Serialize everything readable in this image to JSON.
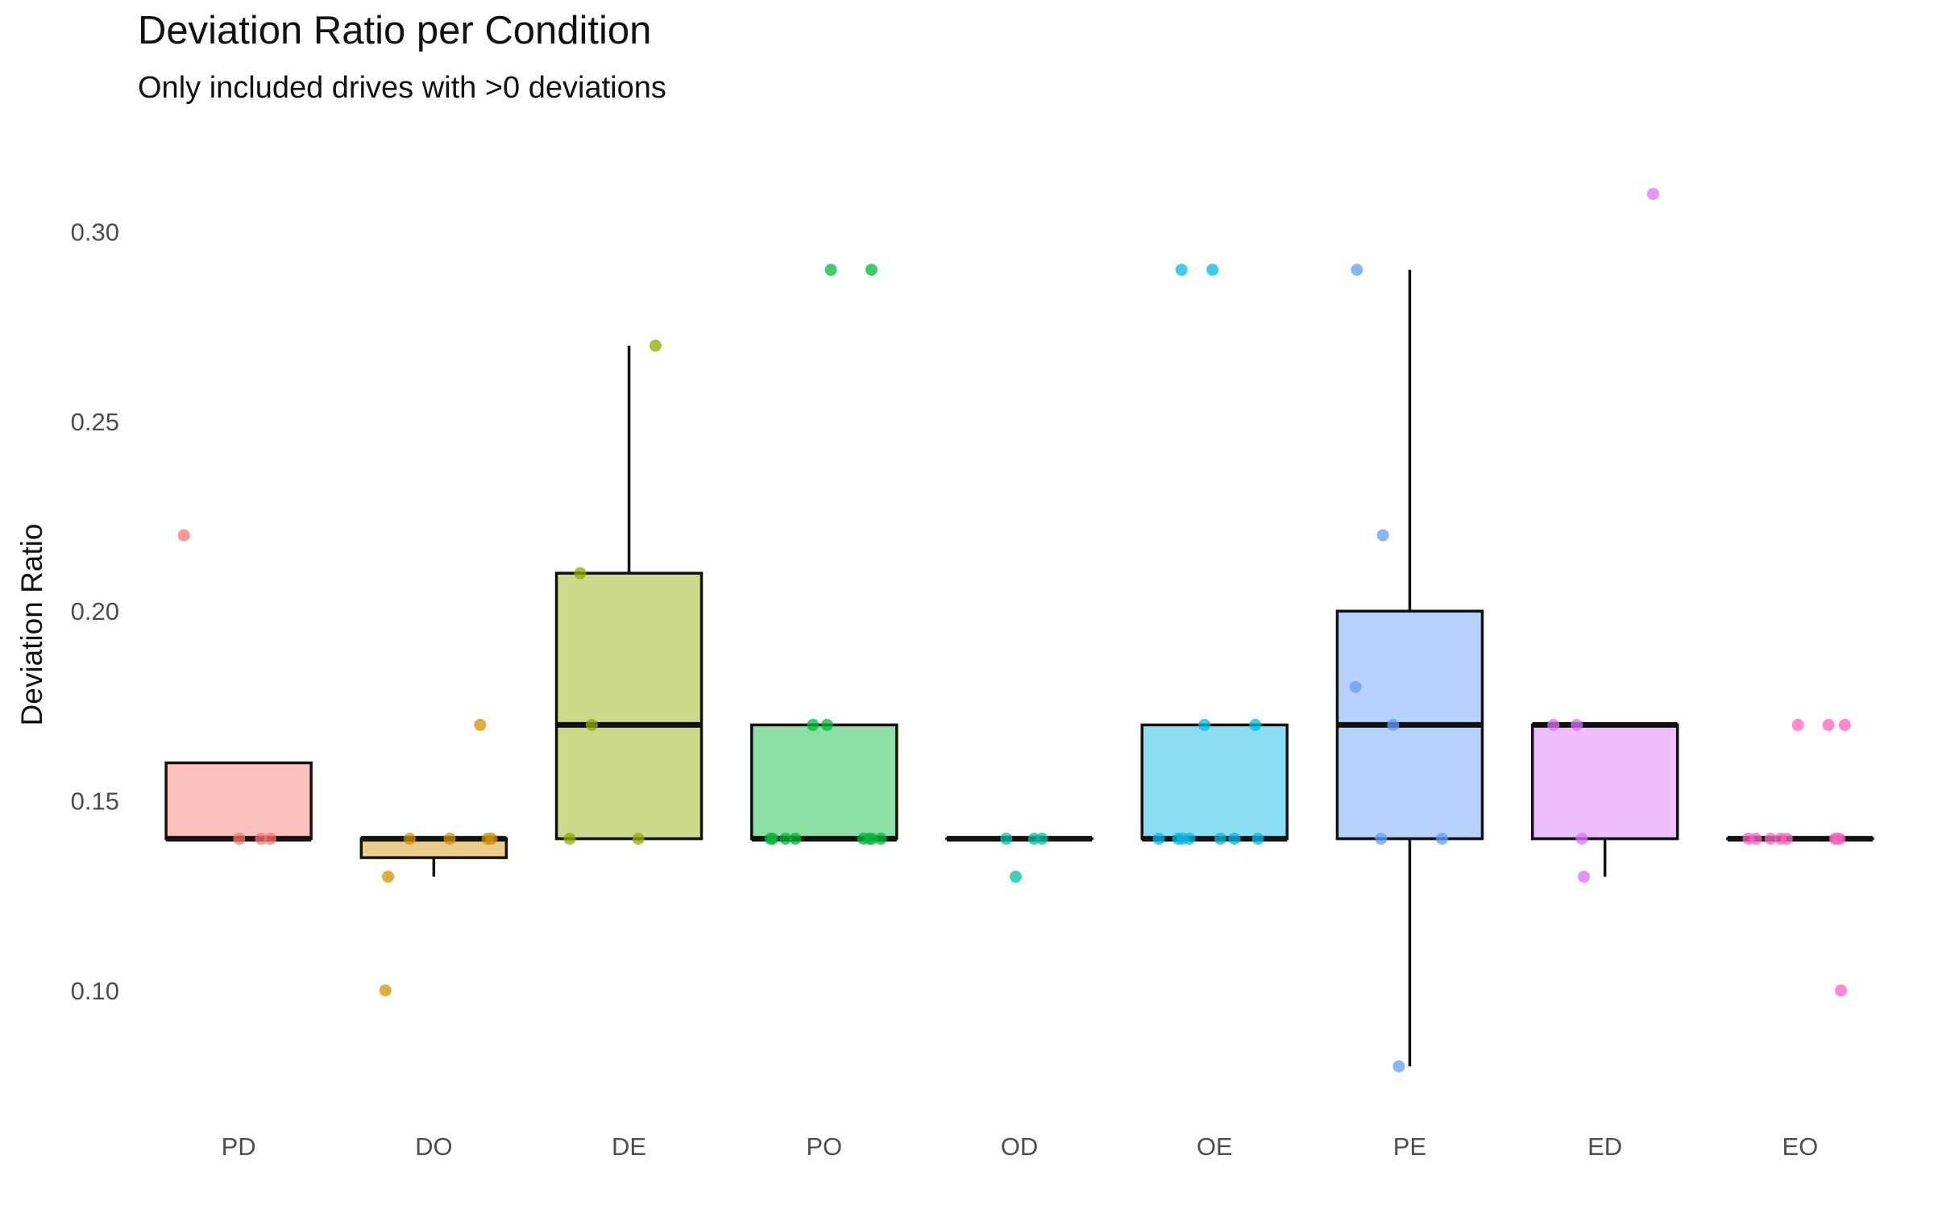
{
  "chart_data": {
    "type": "box",
    "title": "Deviation Ratio per Condition",
    "subtitle": "Only included drives with >0 deviations",
    "xlabel": "",
    "ylabel": "Deviation Ratio",
    "ylim": [
      0.07,
      0.325
    ],
    "yticks": [
      0.1,
      0.15,
      0.2,
      0.25,
      0.3
    ],
    "ytick_labels": [
      "0.10",
      "0.15",
      "0.20",
      "0.25",
      "0.30"
    ],
    "grid": false,
    "legend": "none",
    "categories": [
      "PD",
      "DO",
      "DE",
      "PO",
      "OD",
      "OE",
      "PE",
      "ED",
      "EO"
    ],
    "groups": [
      {
        "name": "PD",
        "color": "#F8766D",
        "q1": 0.14,
        "median": 0.14,
        "q3": 0.16,
        "whisker_low": 0.14,
        "whisker_high": 0.16,
        "points": [
          0.22,
          0.14,
          0.14,
          0.14
        ]
      },
      {
        "name": "DO",
        "color": "#D39200",
        "q1": 0.135,
        "median": 0.14,
        "q3": 0.14,
        "whisker_low": 0.13,
        "whisker_high": 0.14,
        "points": [
          0.17,
          0.14,
          0.14,
          0.14,
          0.14,
          0.13,
          0.1
        ]
      },
      {
        "name": "DE",
        "color": "#93AA00",
        "q1": 0.14,
        "median": 0.17,
        "q3": 0.21,
        "whisker_low": 0.14,
        "whisker_high": 0.27,
        "points": [
          0.27,
          0.21,
          0.17,
          0.14,
          0.14
        ]
      },
      {
        "name": "PO",
        "color": "#00BA38",
        "q1": 0.14,
        "median": 0.14,
        "q3": 0.17,
        "whisker_low": 0.14,
        "whisker_high": 0.17,
        "points": [
          0.29,
          0.29,
          0.17,
          0.17,
          0.14,
          0.14,
          0.14,
          0.14,
          0.14,
          0.14,
          0.14,
          0.14
        ]
      },
      {
        "name": "OD",
        "color": "#00C19F",
        "q1": 0.14,
        "median": 0.14,
        "q3": 0.14,
        "whisker_low": 0.14,
        "whisker_high": 0.14,
        "points": [
          0.14,
          0.14,
          0.14,
          0.13
        ]
      },
      {
        "name": "OE",
        "color": "#00B9E3",
        "q1": 0.14,
        "median": 0.14,
        "q3": 0.17,
        "whisker_low": 0.14,
        "whisker_high": 0.17,
        "points": [
          0.29,
          0.29,
          0.17,
          0.17,
          0.14,
          0.14,
          0.14,
          0.14,
          0.14,
          0.14,
          0.14
        ]
      },
      {
        "name": "PE",
        "color": "#619CFF",
        "q1": 0.14,
        "median": 0.17,
        "q3": 0.2,
        "whisker_low": 0.08,
        "whisker_high": 0.29,
        "points": [
          0.29,
          0.22,
          0.18,
          0.17,
          0.14,
          0.14,
          0.08
        ]
      },
      {
        "name": "ED",
        "color": "#DB72FB",
        "q1": 0.14,
        "median": 0.17,
        "q3": 0.17,
        "whisker_low": 0.13,
        "whisker_high": 0.17,
        "points": [
          0.31,
          0.17,
          0.17,
          0.14,
          0.13
        ]
      },
      {
        "name": "EO",
        "color": "#FF61C3",
        "q1": 0.14,
        "median": 0.14,
        "q3": 0.14,
        "whisker_low": 0.14,
        "whisker_high": 0.14,
        "points": [
          0.17,
          0.17,
          0.17,
          0.14,
          0.14,
          0.14,
          0.14,
          0.14,
          0.14,
          0.14,
          0.14,
          0.1
        ]
      }
    ]
  }
}
